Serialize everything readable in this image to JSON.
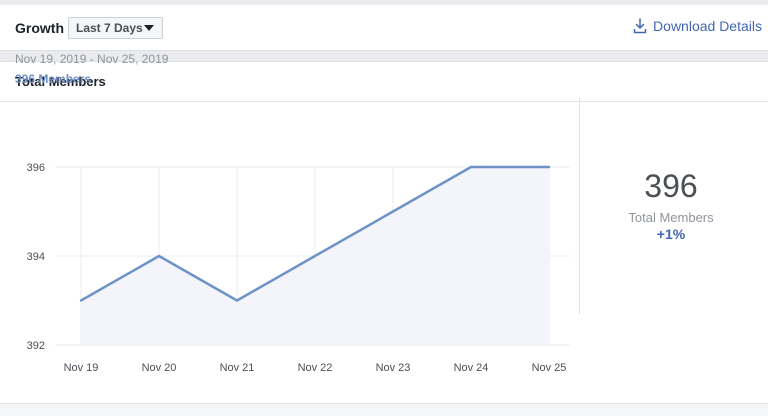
{
  "header": {
    "title": "Growth",
    "range_select": "Last 7 Days",
    "download_label": "Download Details"
  },
  "card": {
    "title": "Total Members",
    "date_range": "Nov 19, 2019 - Nov 25, 2019",
    "members_count": "396",
    "members_word": "Members",
    "summary_value": "396",
    "summary_label": "Total Members",
    "summary_change": "+1%"
  },
  "colors": {
    "line": "#6f93c7",
    "fill": "#f3f5fb",
    "accent": "#4267b2"
  },
  "chart_data": {
    "type": "area",
    "categories": [
      "Nov 19",
      "Nov 20",
      "Nov 21",
      "Nov 22",
      "Nov 23",
      "Nov 24",
      "Nov 25"
    ],
    "series": [
      {
        "values": [
          393,
          394,
          393,
          394,
          395,
          396,
          396
        ]
      }
    ],
    "yticks": [
      392,
      394,
      396
    ],
    "ylim": [
      392,
      396
    ],
    "grid": true
  }
}
